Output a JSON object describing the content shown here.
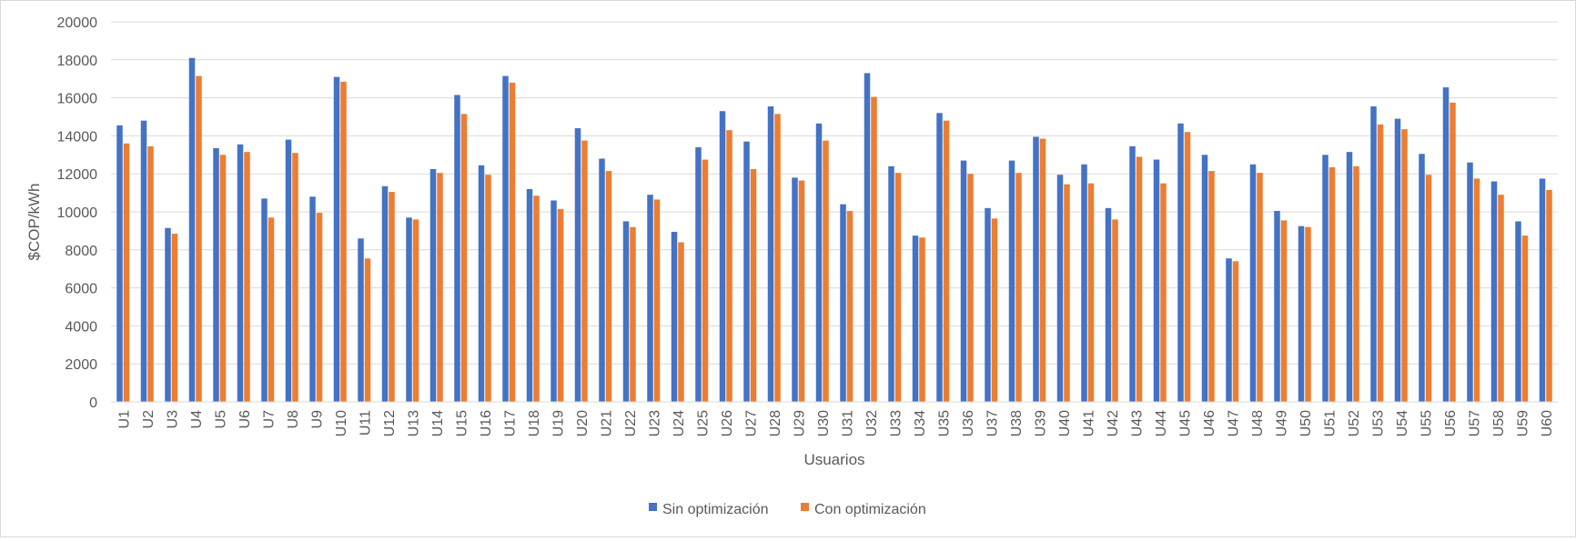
{
  "chart_data": {
    "type": "bar",
    "title": "",
    "xlabel": "Usuarios",
    "ylabel": "$COP/kWh",
    "ylim": [
      0,
      20000
    ],
    "yticks": [
      0,
      2000,
      4000,
      6000,
      8000,
      10000,
      12000,
      14000,
      16000,
      18000,
      20000
    ],
    "grid": true,
    "legend_position": "bottom",
    "categories": [
      "U1",
      "U2",
      "U3",
      "U4",
      "U5",
      "U6",
      "U7",
      "U8",
      "U9",
      "U10",
      "U11",
      "U12",
      "U13",
      "U14",
      "U15",
      "U16",
      "U17",
      "U18",
      "U19",
      "U20",
      "U21",
      "U22",
      "U23",
      "U24",
      "U25",
      "U26",
      "U27",
      "U28",
      "U29",
      "U30",
      "U31",
      "U32",
      "U33",
      "U34",
      "U35",
      "U36",
      "U37",
      "U38",
      "U39",
      "U40",
      "U41",
      "U42",
      "U43",
      "U44",
      "U45",
      "U46",
      "U47",
      "U48",
      "U49",
      "U50",
      "U51",
      "U52",
      "U53",
      "U54",
      "U55",
      "U56",
      "U57",
      "U58",
      "U59",
      "U60"
    ],
    "series": [
      {
        "name": "Sin optimización",
        "color": "#4472c4",
        "values": [
          14550,
          14800,
          9150,
          18100,
          13350,
          13550,
          10700,
          13800,
          10800,
          17100,
          8600,
          11350,
          9700,
          12250,
          16150,
          12450,
          17150,
          11200,
          10600,
          14400,
          12800,
          9500,
          10900,
          8950,
          13400,
          15300,
          13700,
          15550,
          11800,
          14650,
          10400,
          17300,
          12400,
          8750,
          15200,
          12700,
          10200,
          12700,
          13950,
          11950,
          12500,
          10200,
          13450,
          12750,
          14650,
          13000,
          7550,
          12500,
          10050,
          9250,
          13000,
          13150,
          15550,
          14900,
          13050,
          16550,
          12600,
          11600,
          9500,
          11750
        ]
      },
      {
        "name": "Con optimización",
        "color": "#ed7d31",
        "values": [
          13600,
          13450,
          8850,
          17150,
          13000,
          13150,
          9700,
          13100,
          9950,
          16850,
          7550,
          11050,
          9600,
          12050,
          15150,
          11950,
          16800,
          10850,
          10150,
          13750,
          12150,
          9200,
          10650,
          8400,
          12750,
          14300,
          12250,
          15150,
          11650,
          13750,
          10050,
          16050,
          12050,
          8650,
          14800,
          12000,
          9650,
          12050,
          13850,
          11450,
          11500,
          9600,
          12900,
          11500,
          14200,
          12150,
          7400,
          12050,
          9550,
          9200,
          12350,
          12400,
          14600,
          14350,
          11950,
          15750,
          11750,
          10900,
          8750,
          11150
        ]
      }
    ]
  }
}
